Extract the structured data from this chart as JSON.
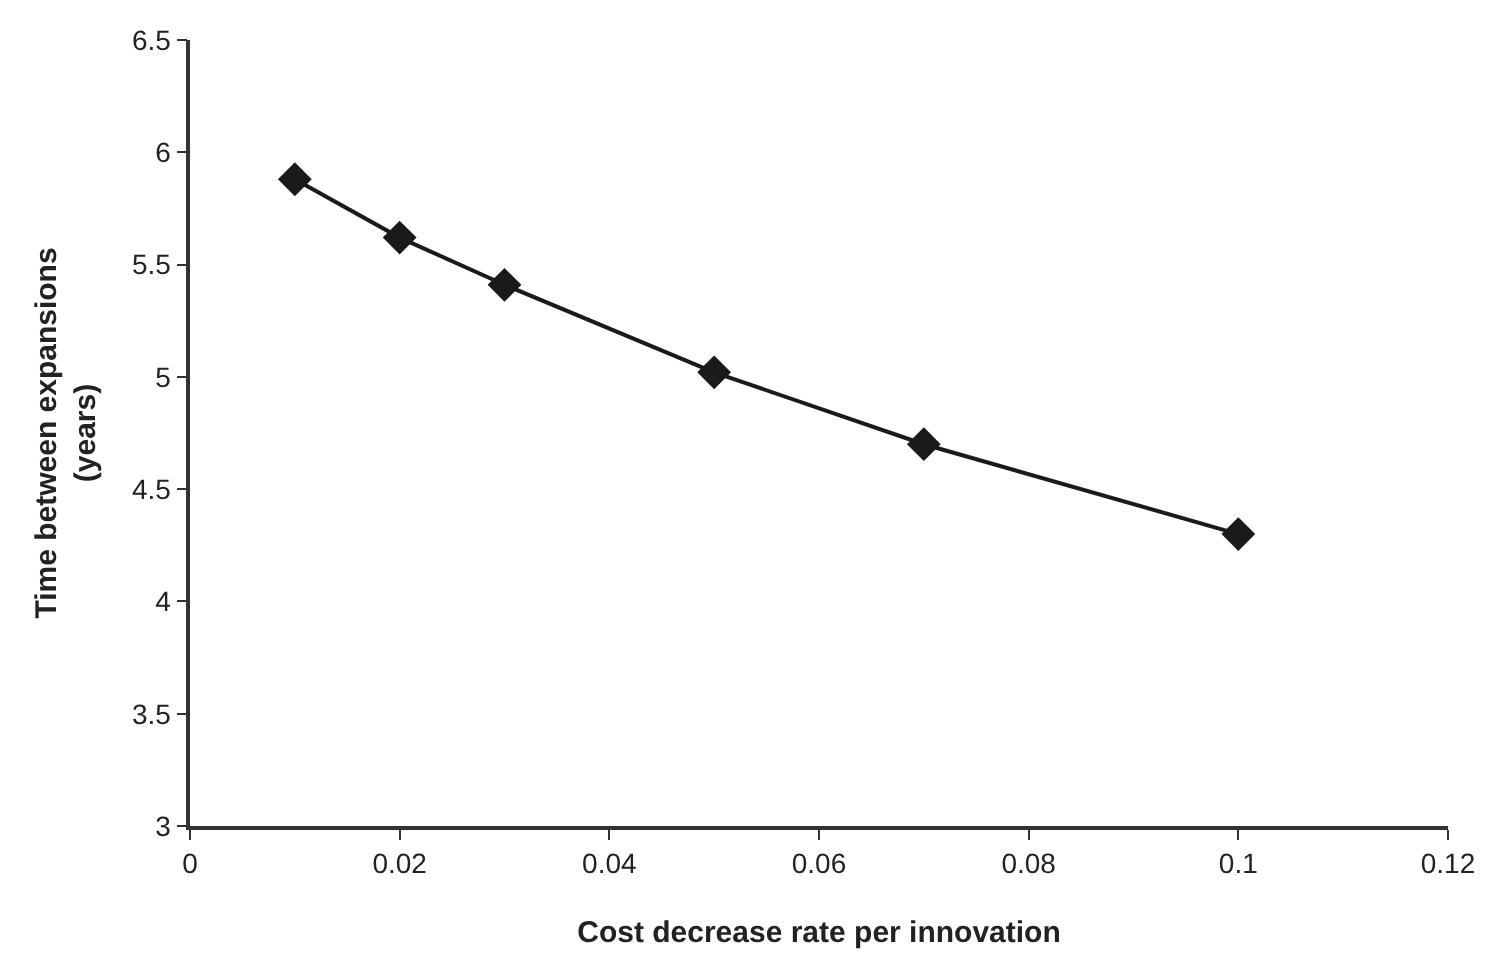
{
  "chart_data": {
    "type": "line",
    "xlabel": "Cost decrease rate per innovation",
    "ylabel": "Time between expansions\n(years)",
    "x": [
      0.01,
      0.02,
      0.03,
      0.05,
      0.07,
      0.1
    ],
    "series": [
      {
        "color": "#1a1a1a",
        "values": [
          5.88,
          5.62,
          5.41,
          5.02,
          4.7,
          4.3
        ]
      }
    ],
    "xlim": [
      0,
      0.12
    ],
    "xticks": [
      0,
      0.02,
      0.04,
      0.06,
      0.08,
      0.1,
      0.12
    ],
    "ylim": [
      3,
      6.5
    ],
    "yticks": [
      3,
      3.5,
      4,
      4.5,
      5,
      5.5,
      6,
      6.5
    ],
    "marker": "diamond",
    "line_style": "solid",
    "grid": false
  }
}
